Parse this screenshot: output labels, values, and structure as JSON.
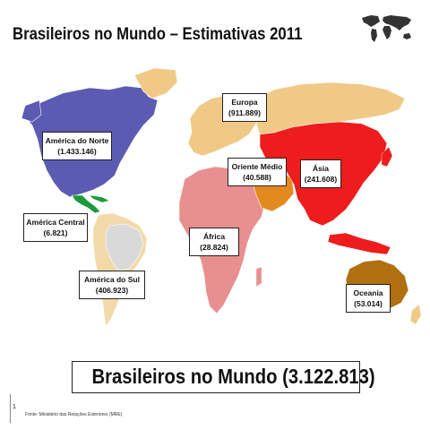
{
  "title": "Brasileiros no Mundo – Estimativas 2011",
  "colors": {
    "north_america": "#5b5bb3",
    "central_america": "#1a9a3c",
    "south_america": "#f2d9a8",
    "europe": "#f0c987",
    "africa": "#e88f8f",
    "middle_east": "#e38a1f",
    "asia": "#ee1c1c",
    "oceania": "#b06f10",
    "other_land": "#f0c987",
    "south_america_highlight": "#d9d9d9"
  },
  "regions": [
    {
      "key": "america_do_norte",
      "name": "América do Norte",
      "value": "(1.433.146)"
    },
    {
      "key": "america_central",
      "name": "América Central",
      "value": "(6.821)"
    },
    {
      "key": "america_do_sul",
      "name": "América do Sul",
      "value": "(406.923)"
    },
    {
      "key": "europa",
      "name": "Europa",
      "value": "(911.889)"
    },
    {
      "key": "oriente_medio",
      "name": "Oriente Médio",
      "value": "(40.588)"
    },
    {
      "key": "asia",
      "name": "Ásia",
      "value": "(241.608)"
    },
    {
      "key": "africa",
      "name": "África",
      "value": "(28.824)"
    },
    {
      "key": "oceania",
      "name": "Oceania",
      "value": "(53.014)"
    }
  ],
  "total": "Brasileiros no Mundo (3.122.813)",
  "page_number": "1",
  "source": "Fonte: Ministério das Relações Exteriores (MRE)"
}
